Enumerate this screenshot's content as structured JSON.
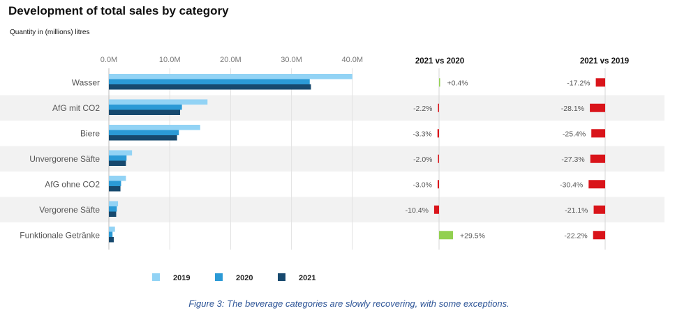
{
  "title": "Development of total sales by category",
  "subtitle": "Quantity in (millions) litres",
  "caption": "Figure 3: The beverage categories are slowly recovering, with some exceptions.",
  "chart_data": {
    "type": "bar",
    "orientation": "horizontal",
    "categories": [
      "Wasser",
      "AfG mit CO2",
      "Biere",
      "Unvergorene Säfte",
      "AfG ohne CO2",
      "Vergorene Säfte",
      "Funktionale Getränke"
    ],
    "series": [
      {
        "name": "2019",
        "color": "#92d3f5",
        "values": [
          40.0,
          16.2,
          15.0,
          3.8,
          2.8,
          1.5,
          1.0
        ]
      },
      {
        "name": "2020",
        "color": "#2b9ad6",
        "values": [
          33.0,
          12.0,
          11.5,
          2.9,
          2.0,
          1.3,
          0.6
        ]
      },
      {
        "name": "2021",
        "color": "#17496e",
        "values": [
          33.2,
          11.7,
          11.2,
          2.8,
          1.9,
          1.2,
          0.8
        ]
      }
    ],
    "xticks": [
      "0.0M",
      "10.0M",
      "20.0M",
      "30.0M",
      "40.0M"
    ],
    "xlim": [
      0,
      40
    ],
    "legend_position": "bottom",
    "comparisons": [
      {
        "title": "2021 vs 2020",
        "labels": [
          "+0.4%",
          "-2.2%",
          "-3.3%",
          "-2.0%",
          "-3.0%",
          "-10.4%",
          "+29.5%"
        ],
        "values": [
          0.4,
          -2.2,
          -3.3,
          -2.0,
          -3.0,
          -10.4,
          29.5
        ]
      },
      {
        "title": "2021 vs 2019",
        "labels": [
          "-17.2%",
          "-28.1%",
          "-25.4%",
          "-27.3%",
          "-30.4%",
          "-21.1%",
          "-22.2%"
        ],
        "values": [
          -17.2,
          -28.1,
          -25.4,
          -27.3,
          -30.4,
          -21.1,
          -22.2
        ]
      }
    ],
    "positive_color": "#92d050",
    "negative_color": "#d9141a"
  }
}
